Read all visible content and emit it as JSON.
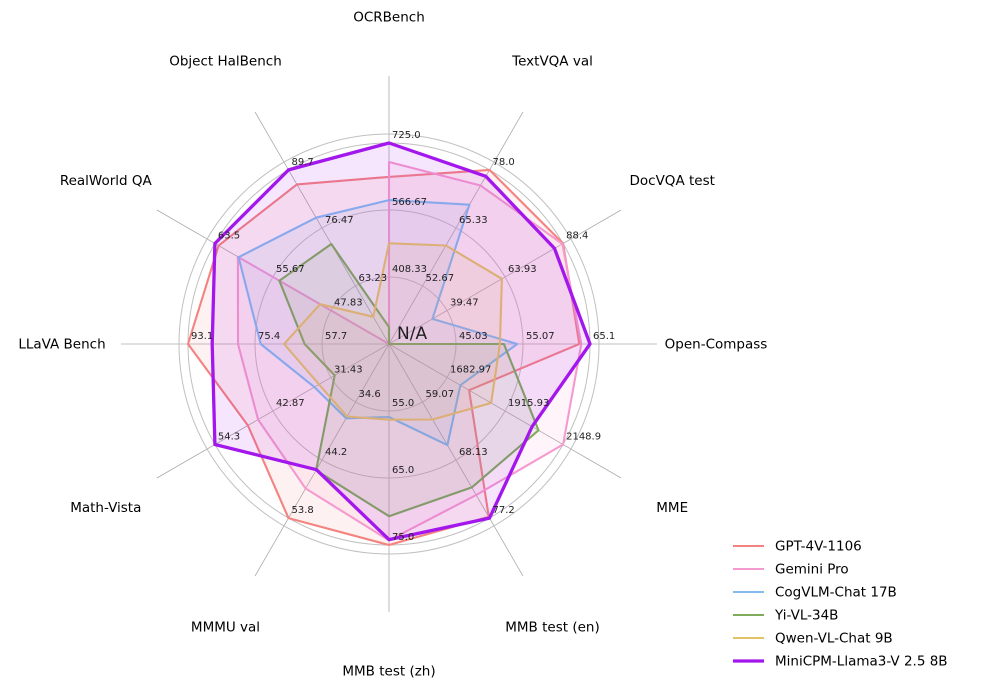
{
  "chart_data": {
    "type": "radar",
    "title": "",
    "center_label": "N/A",
    "layout_hints": {
      "legend_position": "lower right",
      "grid": "on",
      "rings_labeled": 3,
      "note": "each axis normalized from min (center) to max (outer ring); null value = N/A plotted at center"
    },
    "axes": [
      {
        "label": "OCRBench",
        "min": 250.0,
        "max": 725.0,
        "ticks": [
          "725.0",
          "566.67",
          "408.33"
        ]
      },
      {
        "label": "TextVQA val",
        "min": 40.0,
        "max": 78.0,
        "ticks": [
          "78.0",
          "65.33",
          "52.67"
        ]
      },
      {
        "label": "DocVQA test",
        "min": 15.0,
        "max": 88.4,
        "ticks": [
          "88.4",
          "63.93",
          "39.47"
        ]
      },
      {
        "label": "Open-Compass",
        "min": 35.0,
        "max": 65.1,
        "ticks": [
          "65.1",
          "55.07",
          "45.03"
        ]
      },
      {
        "label": "MME",
        "min": 1450.0,
        "max": 2148.9,
        "ticks": [
          "2148.9",
          "1915.93",
          "1682.97"
        ]
      },
      {
        "label": "MMB test (en)",
        "min": 50.0,
        "max": 77.2,
        "ticks": [
          "77.2",
          "68.13",
          "59.07"
        ]
      },
      {
        "label": "MMB test (zh)",
        "min": 45.0,
        "max": 75.0,
        "ticks": [
          "75.0",
          "65.0",
          "55.0"
        ]
      },
      {
        "label": "MMMU val",
        "min": 25.0,
        "max": 53.8,
        "ticks": [
          "53.8",
          "44.2",
          "34.6"
        ]
      },
      {
        "label": "Math-Vista",
        "min": 20.0,
        "max": 54.3,
        "ticks": [
          "54.3",
          "42.87",
          "31.43"
        ]
      },
      {
        "label": "LLaVA Bench",
        "min": 40.0,
        "max": 93.1,
        "ticks": [
          "93.1",
          "75.4",
          "57.7"
        ]
      },
      {
        "label": "RealWorld QA",
        "min": 40.0,
        "max": 63.5,
        "ticks": [
          "63.5",
          "55.67",
          "47.83"
        ]
      },
      {
        "label": "Object HalBench",
        "min": 50.0,
        "max": 89.7,
        "ticks": [
          "89.7",
          "76.47",
          "63.23"
        ]
      }
    ],
    "series": [
      {
        "name": "GPT-4V-1106",
        "color": "#f4827f",
        "line_width": 2.1,
        "values": [
          645,
          78.0,
          88.4,
          63.5,
          1771.5,
          77.0,
          75.0,
          53.8,
          47.8,
          93.1,
          63.0,
          86.4
        ]
      },
      {
        "name": "Gemini Pro",
        "color": "#f59ace",
        "line_width": 2.1,
        "values": [
          680,
          74.6,
          88.1,
          63.8,
          2148.9,
          73.6,
          74.3,
          48.9,
          45.8,
          79.9,
          60.4,
          null
        ]
      },
      {
        "name": "CogVLM-Chat 17B",
        "color": "#85baed",
        "line_width": 2.1,
        "values": [
          590,
          70.4,
          33.3,
          54.2,
          1736.6,
          65.8,
          55.9,
          37.3,
          34.7,
          73.9,
          60.3,
          78.8
        ]
      },
      {
        "name": "Yi-VL-34B",
        "color": "#7fab5a",
        "line_width": 2.1,
        "values": [
          290,
          null,
          null,
          52.2,
          2050.2,
          72.4,
          70.7,
          45.9,
          30.7,
          62.3,
          54.8,
          72.8
        ]
      },
      {
        "name": "Qwen-VL-Chat 9B",
        "color": "#e2c268",
        "line_width": 2.1,
        "values": [
          488,
          61.5,
          62.6,
          51.6,
          1860.0,
          61.8,
          56.3,
          37.0,
          33.8,
          67.7,
          49.3,
          56.2
        ]
      },
      {
        "name": "MiniCPM-Llama3-V 2.5 8B",
        "color": "#a317ec",
        "line_width": 3.3,
        "values": [
          725,
          76.6,
          84.8,
          65.1,
          2024.6,
          77.2,
          74.2,
          45.8,
          54.3,
          86.7,
          63.5,
          89.7
        ]
      }
    ]
  }
}
